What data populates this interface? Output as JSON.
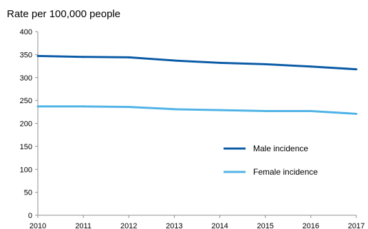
{
  "chart_data": {
    "type": "line",
    "title": "",
    "xlabel": "",
    "ylabel": "Rate per 100,000 people",
    "x": [
      "2010",
      "2011",
      "2012",
      "2013",
      "2014",
      "2015",
      "2016",
      "2017"
    ],
    "yticks": [
      "0",
      "50",
      "100",
      "150",
      "200",
      "250",
      "300",
      "350",
      "400"
    ],
    "ylim": [
      0,
      400
    ],
    "grid": false,
    "legend_position": "center-right",
    "series": [
      {
        "name": "Male incidence",
        "color": "#0A5BA6",
        "values": [
          347,
          345,
          344,
          337,
          332,
          329,
          324,
          318
        ]
      },
      {
        "name": "Female incidence",
        "color": "#4FB3E6",
        "values": [
          237,
          237,
          236,
          231,
          229,
          227,
          227,
          221
        ]
      }
    ]
  }
}
